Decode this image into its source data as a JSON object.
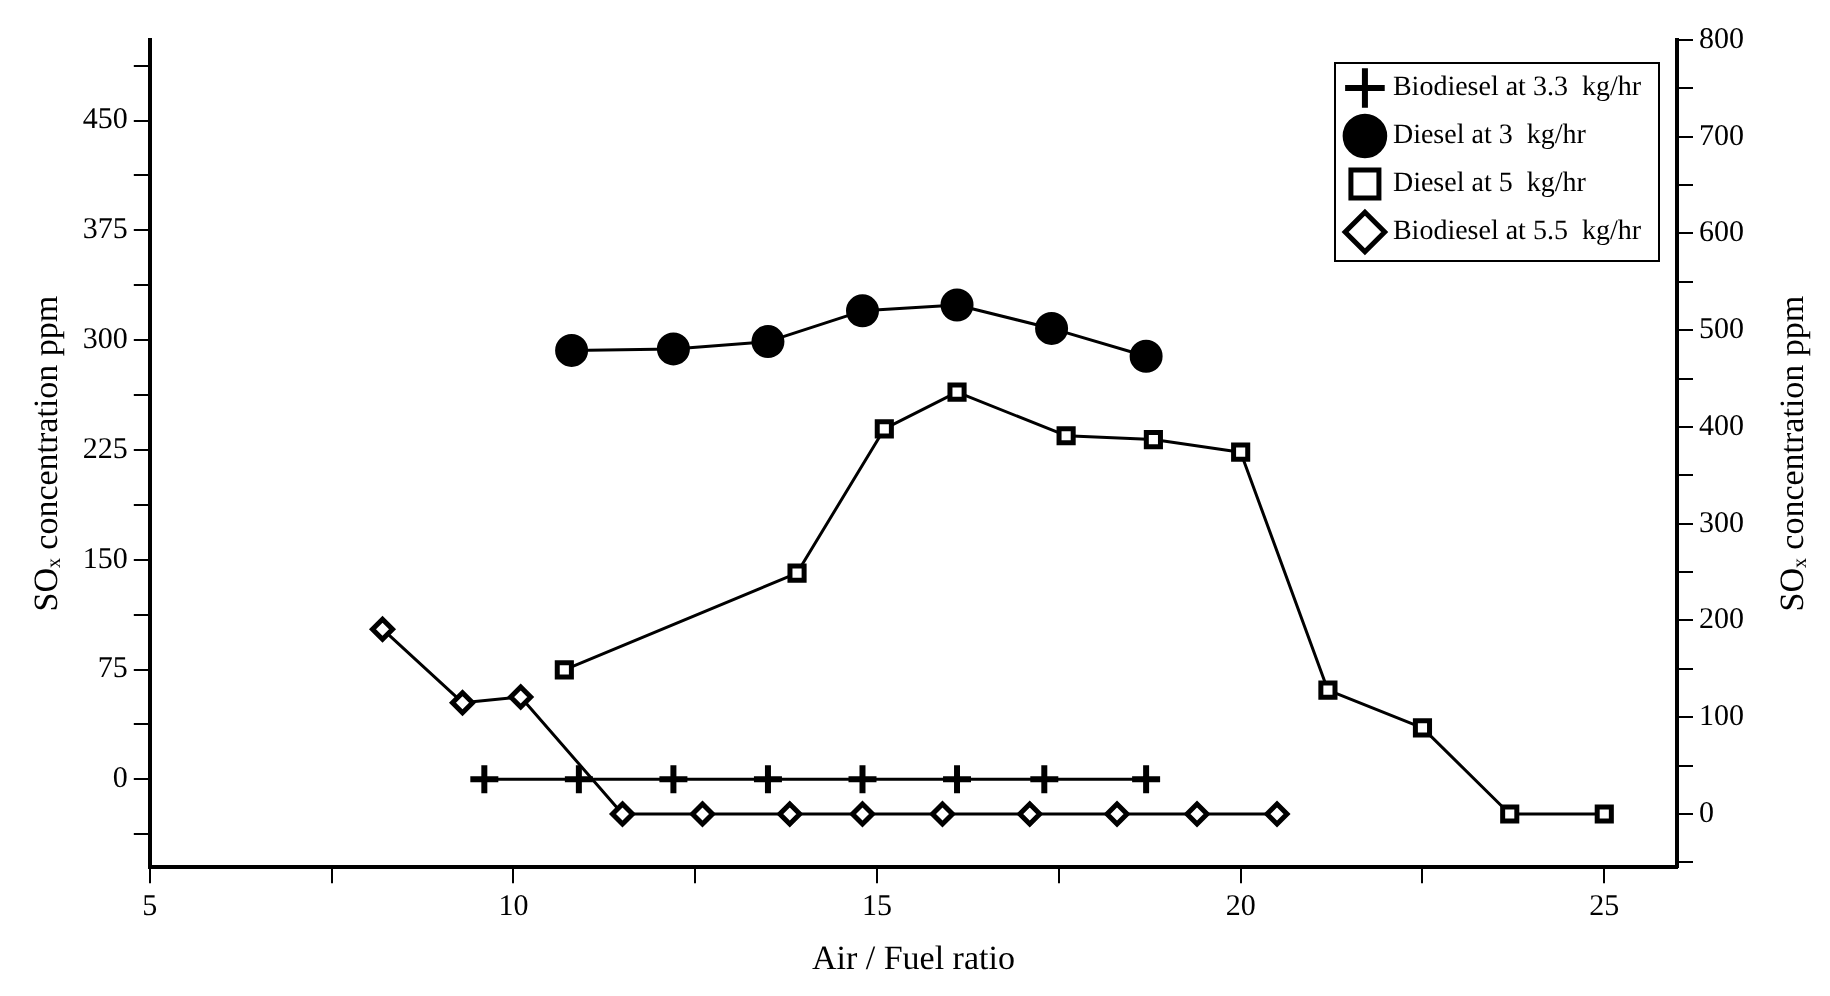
{
  "chart_data": {
    "type": "line",
    "xlabel": "Air / Fuel ratio",
    "ylabel": "SOₓ concentration ppm",
    "y2label": "SOₓ concentration ppm",
    "xlim": [
      5,
      26
    ],
    "xticks": [
      5,
      {
        "value": 7.5,
        "label": null
      },
      10,
      {
        "value": 12.5,
        "label": null
      },
      15,
      {
        "value": 17.5,
        "label": null
      },
      20,
      {
        "value": 22.5,
        "label": null
      },
      25
    ],
    "ylim": [
      -60,
      505
    ],
    "yticks": [
      {
        "value": -37.5,
        "label": null
      },
      0,
      {
        "value": 37.5,
        "label": null
      },
      75,
      {
        "value": 112.5,
        "label": null
      },
      150,
      {
        "value": 187.5,
        "label": null
      },
      225,
      {
        "value": 262.5,
        "label": null
      },
      300,
      {
        "value": 337.5,
        "label": null
      },
      375,
      {
        "value": 412.5,
        "label": null
      },
      450,
      {
        "value": 487.5,
        "label": null
      }
    ],
    "y2lim": [
      -55,
      800
    ],
    "y2ticks": [
      {
        "value": -50,
        "label": null
      },
      0,
      {
        "value": 50,
        "label": null
      },
      100,
      {
        "value": 150,
        "label": null
      },
      200,
      {
        "value": 250,
        "label": null
      },
      300,
      {
        "value": 350,
        "label": null
      },
      400,
      {
        "value": 450,
        "label": null
      },
      500,
      {
        "value": 550,
        "label": null
      },
      600,
      {
        "value": 650,
        "label": null
      },
      700,
      {
        "value": 750,
        "label": null
      },
      800
    ],
    "grid": false,
    "legend": "top right",
    "line_style": "solid",
    "series": [
      {
        "name": "Biodiesel at 3.3  kg/hr",
        "color": "#000000",
        "marker": "cross",
        "x": [
          9.6,
          10.9,
          12.2,
          13.5,
          14.8,
          16.1,
          17.3,
          18.7
        ],
        "values": [
          0,
          0,
          0,
          0,
          0,
          0,
          0,
          0
        ]
      },
      {
        "name": "Diesel at 3  kg/hr",
        "color": "#000000",
        "marker": "circle",
        "x": [
          10.8,
          12.2,
          13.5,
          14.8,
          16.1,
          17.4,
          18.7
        ],
        "values": [
          293,
          294,
          299,
          320,
          324,
          308,
          289
        ]
      },
      {
        "name": "Diesel at 5  kg/hr",
        "color": "#000000",
        "marker": "square",
        "axis": "y2",
        "x": [
          10.7,
          13.9,
          15.1,
          16.1,
          17.6,
          18.8,
          20.0,
          21.2,
          22.5,
          23.7,
          25.0
        ],
        "values": [
          149,
          249,
          398,
          436,
          391,
          387,
          374,
          128,
          89,
          0,
          0
        ]
      },
      {
        "name": "Biodiesel at 5.5  kg/hr",
        "color": "#000000",
        "marker": "diamond",
        "axis": "y2",
        "x": [
          8.2,
          9.3,
          10.1,
          11.5,
          12.6,
          13.8,
          14.8,
          15.9,
          17.1,
          18.3,
          19.4,
          20.5
        ],
        "values": [
          191,
          115,
          121,
          0,
          0,
          0,
          0,
          0,
          0,
          0,
          0,
          0
        ]
      }
    ]
  }
}
